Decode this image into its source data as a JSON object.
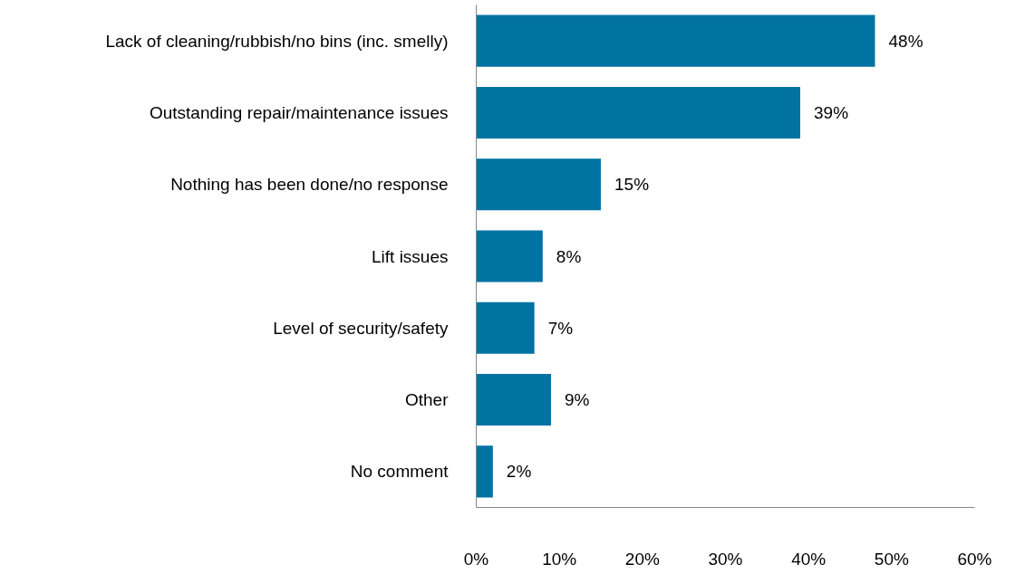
{
  "chart_data": {
    "type": "bar",
    "orientation": "horizontal",
    "categories": [
      "Lack of cleaning/rubbish/no bins (inc. smelly)",
      "Outstanding repair/maintenance issues",
      "Nothing has been done/no response",
      "Lift issues",
      "Level of security/safety",
      "Other",
      "No comment"
    ],
    "values": [
      48,
      39,
      15,
      8,
      7,
      9,
      2
    ],
    "value_labels": [
      "48%",
      "39%",
      "15%",
      "8%",
      "7%",
      "9%",
      "2%"
    ],
    "color": "#0073a3",
    "xlim": [
      0,
      60
    ],
    "xticks": [
      {
        "value": 0,
        "label": "0%"
      },
      {
        "value": 10,
        "label": "10%"
      },
      {
        "value": 20,
        "label": "20%"
      },
      {
        "value": 30,
        "label": "30%"
      },
      {
        "value": 40,
        "label": "40%"
      },
      {
        "value": 50,
        "label": "50%"
      },
      {
        "value": 60,
        "label": "60%"
      }
    ],
    "grid": false
  }
}
